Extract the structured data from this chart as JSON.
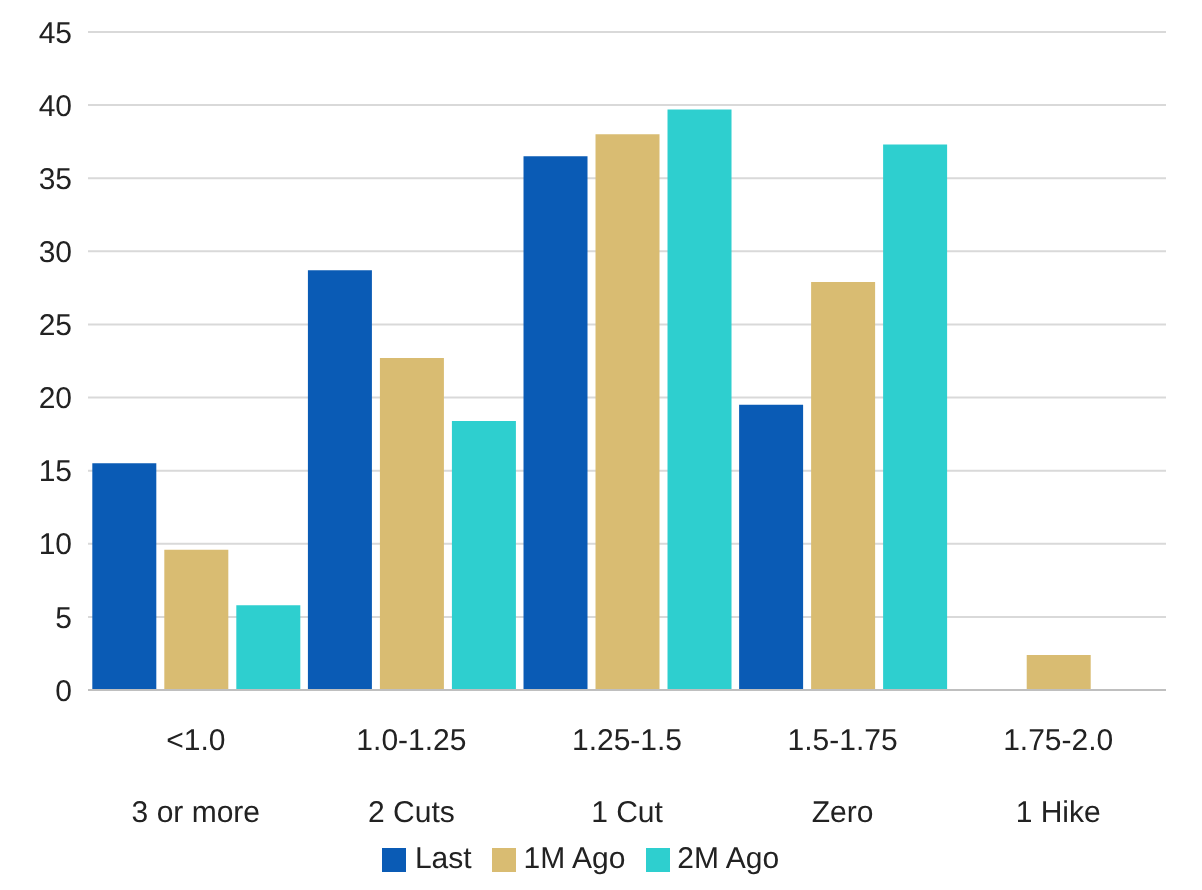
{
  "chart_data": {
    "type": "bar",
    "categories": [
      "<1.0\n3 or more",
      "1.0-1.25\n2 Cuts",
      "1.25-1.5\n1 Cut",
      "1.5-1.75\nZero",
      "1.75-2.0\n1 Hike"
    ],
    "series": [
      {
        "name": "Last",
        "color": "#0a5bb5",
        "values": [
          15.5,
          28.7,
          36.5,
          19.5,
          null
        ]
      },
      {
        "name": "1M Ago",
        "color": "#d9bc72",
        "values": [
          9.6,
          22.7,
          38.0,
          27.9,
          2.4
        ]
      },
      {
        "name": "2M Ago",
        "color": "#2ecfcf",
        "values": [
          5.8,
          18.4,
          39.7,
          37.3,
          null
        ]
      }
    ],
    "ylim": [
      0,
      45
    ],
    "yticks": [
      0,
      5,
      10,
      15,
      20,
      25,
      30,
      35,
      40,
      45
    ],
    "grid": "y",
    "legend": "bottom"
  }
}
